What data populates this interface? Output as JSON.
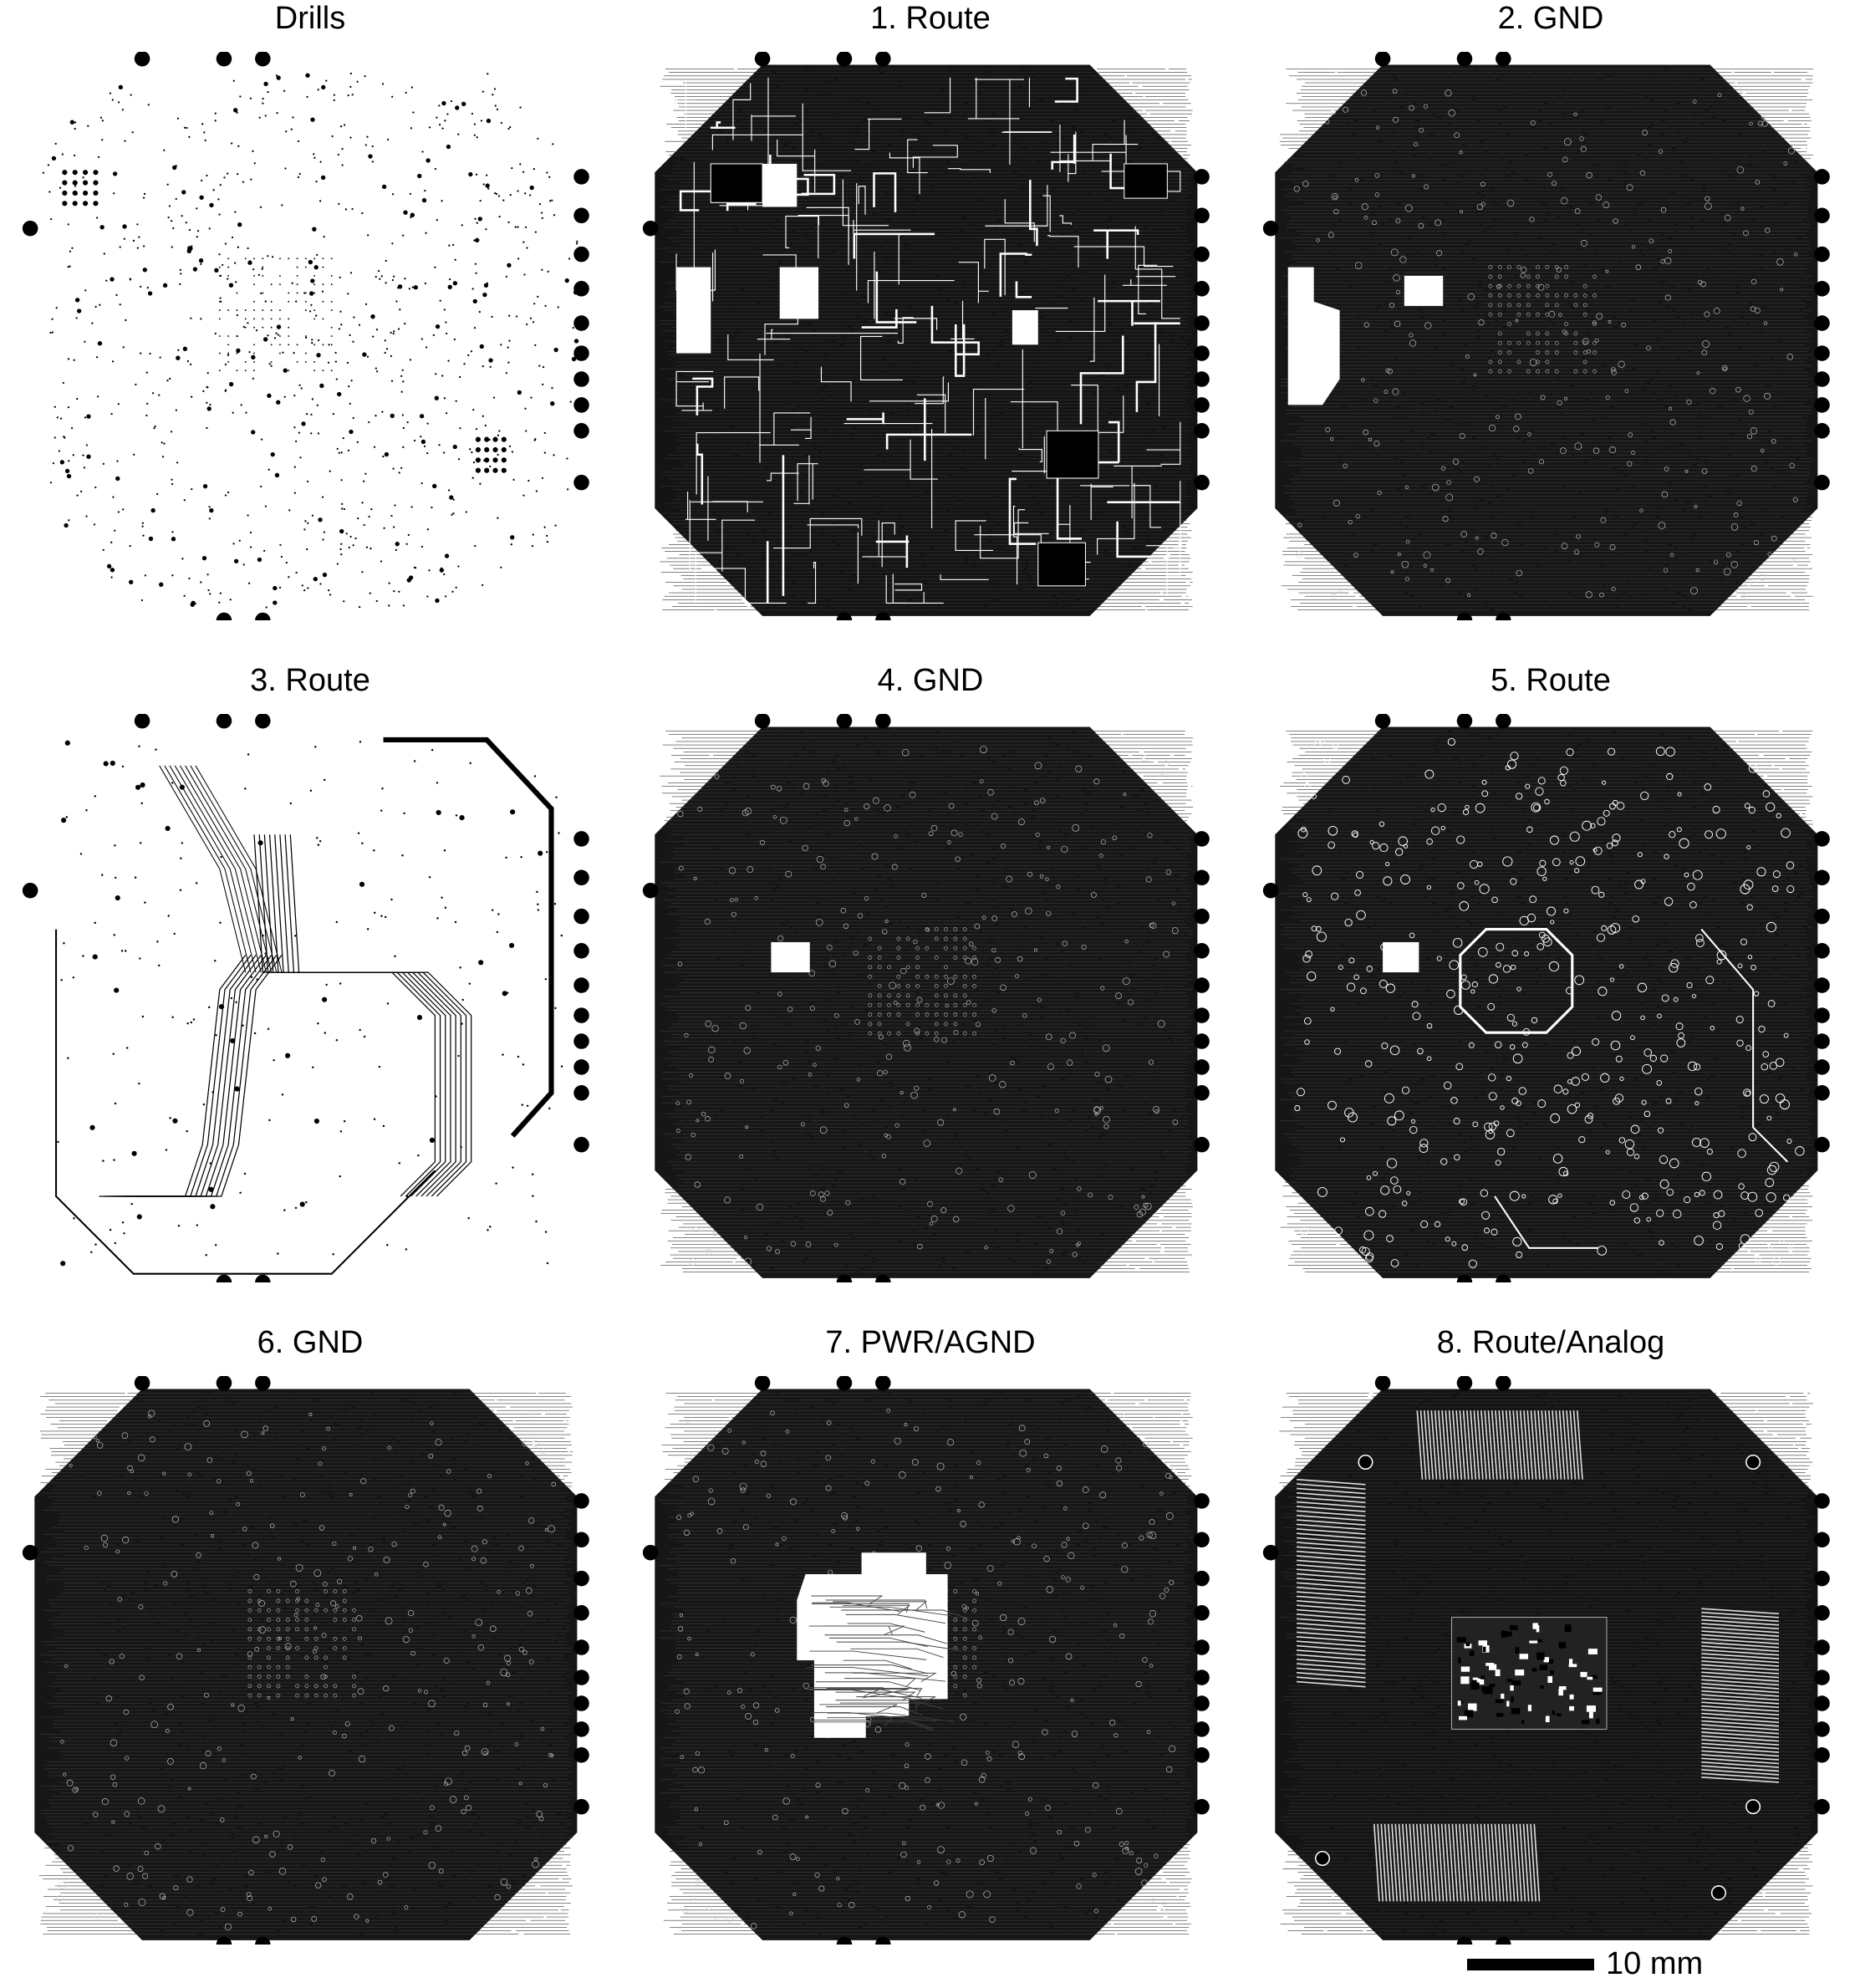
{
  "panels": [
    {
      "title": "Drills",
      "kind": "drills"
    },
    {
      "title": "1. Route",
      "kind": "route1"
    },
    {
      "title": "2. GND",
      "kind": "gnd"
    },
    {
      "title": "3. Route",
      "kind": "route3"
    },
    {
      "title": "4. GND",
      "kind": "gnd"
    },
    {
      "title": "5. Route",
      "kind": "route5"
    },
    {
      "title": "6. GND",
      "kind": "gnd"
    },
    {
      "title": "7. PWR/AGND",
      "kind": "pwr"
    },
    {
      "title": "8. Route/Analog",
      "kind": "route8"
    }
  ],
  "scale_bar": {
    "label": "10 mm"
  }
}
